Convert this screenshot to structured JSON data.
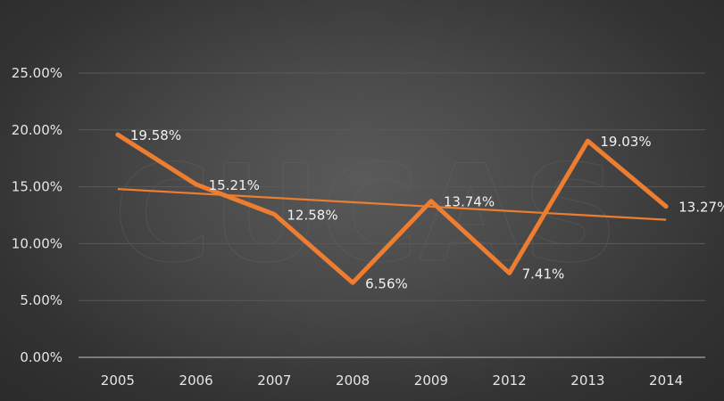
{
  "watermark": "CUCAS",
  "colors": {
    "series": "#ed7d31",
    "trend": "#ed7d31",
    "grid": "#595959",
    "axis": "#a6a6a6",
    "text": "#e6e6e6"
  },
  "chart_data": {
    "type": "line",
    "title": "",
    "xlabel": "",
    "ylabel": "",
    "categories": [
      "2005",
      "2006",
      "2007",
      "2008",
      "2009",
      "2012",
      "2013",
      "2014"
    ],
    "series": [
      {
        "values": [
          19.58,
          15.21,
          12.58,
          6.56,
          13.74,
          7.41,
          19.03,
          13.27
        ],
        "data_labels": [
          "19.58%",
          "15.21%",
          "12.58%",
          "6.56%",
          "13.74%",
          "7.41%",
          "19.03%",
          "13.27%"
        ]
      }
    ],
    "trendline": {
      "type": "linear",
      "start": 14.8,
      "end": 12.1
    },
    "ylim": [
      0,
      25
    ],
    "yticks": [
      0,
      5,
      10,
      15,
      20,
      25
    ],
    "ytick_labels": [
      "0.00%",
      "5.00%",
      "10.00%",
      "15.00%",
      "20.00%",
      "25.00%"
    ],
    "grid": true,
    "legend": "none"
  }
}
